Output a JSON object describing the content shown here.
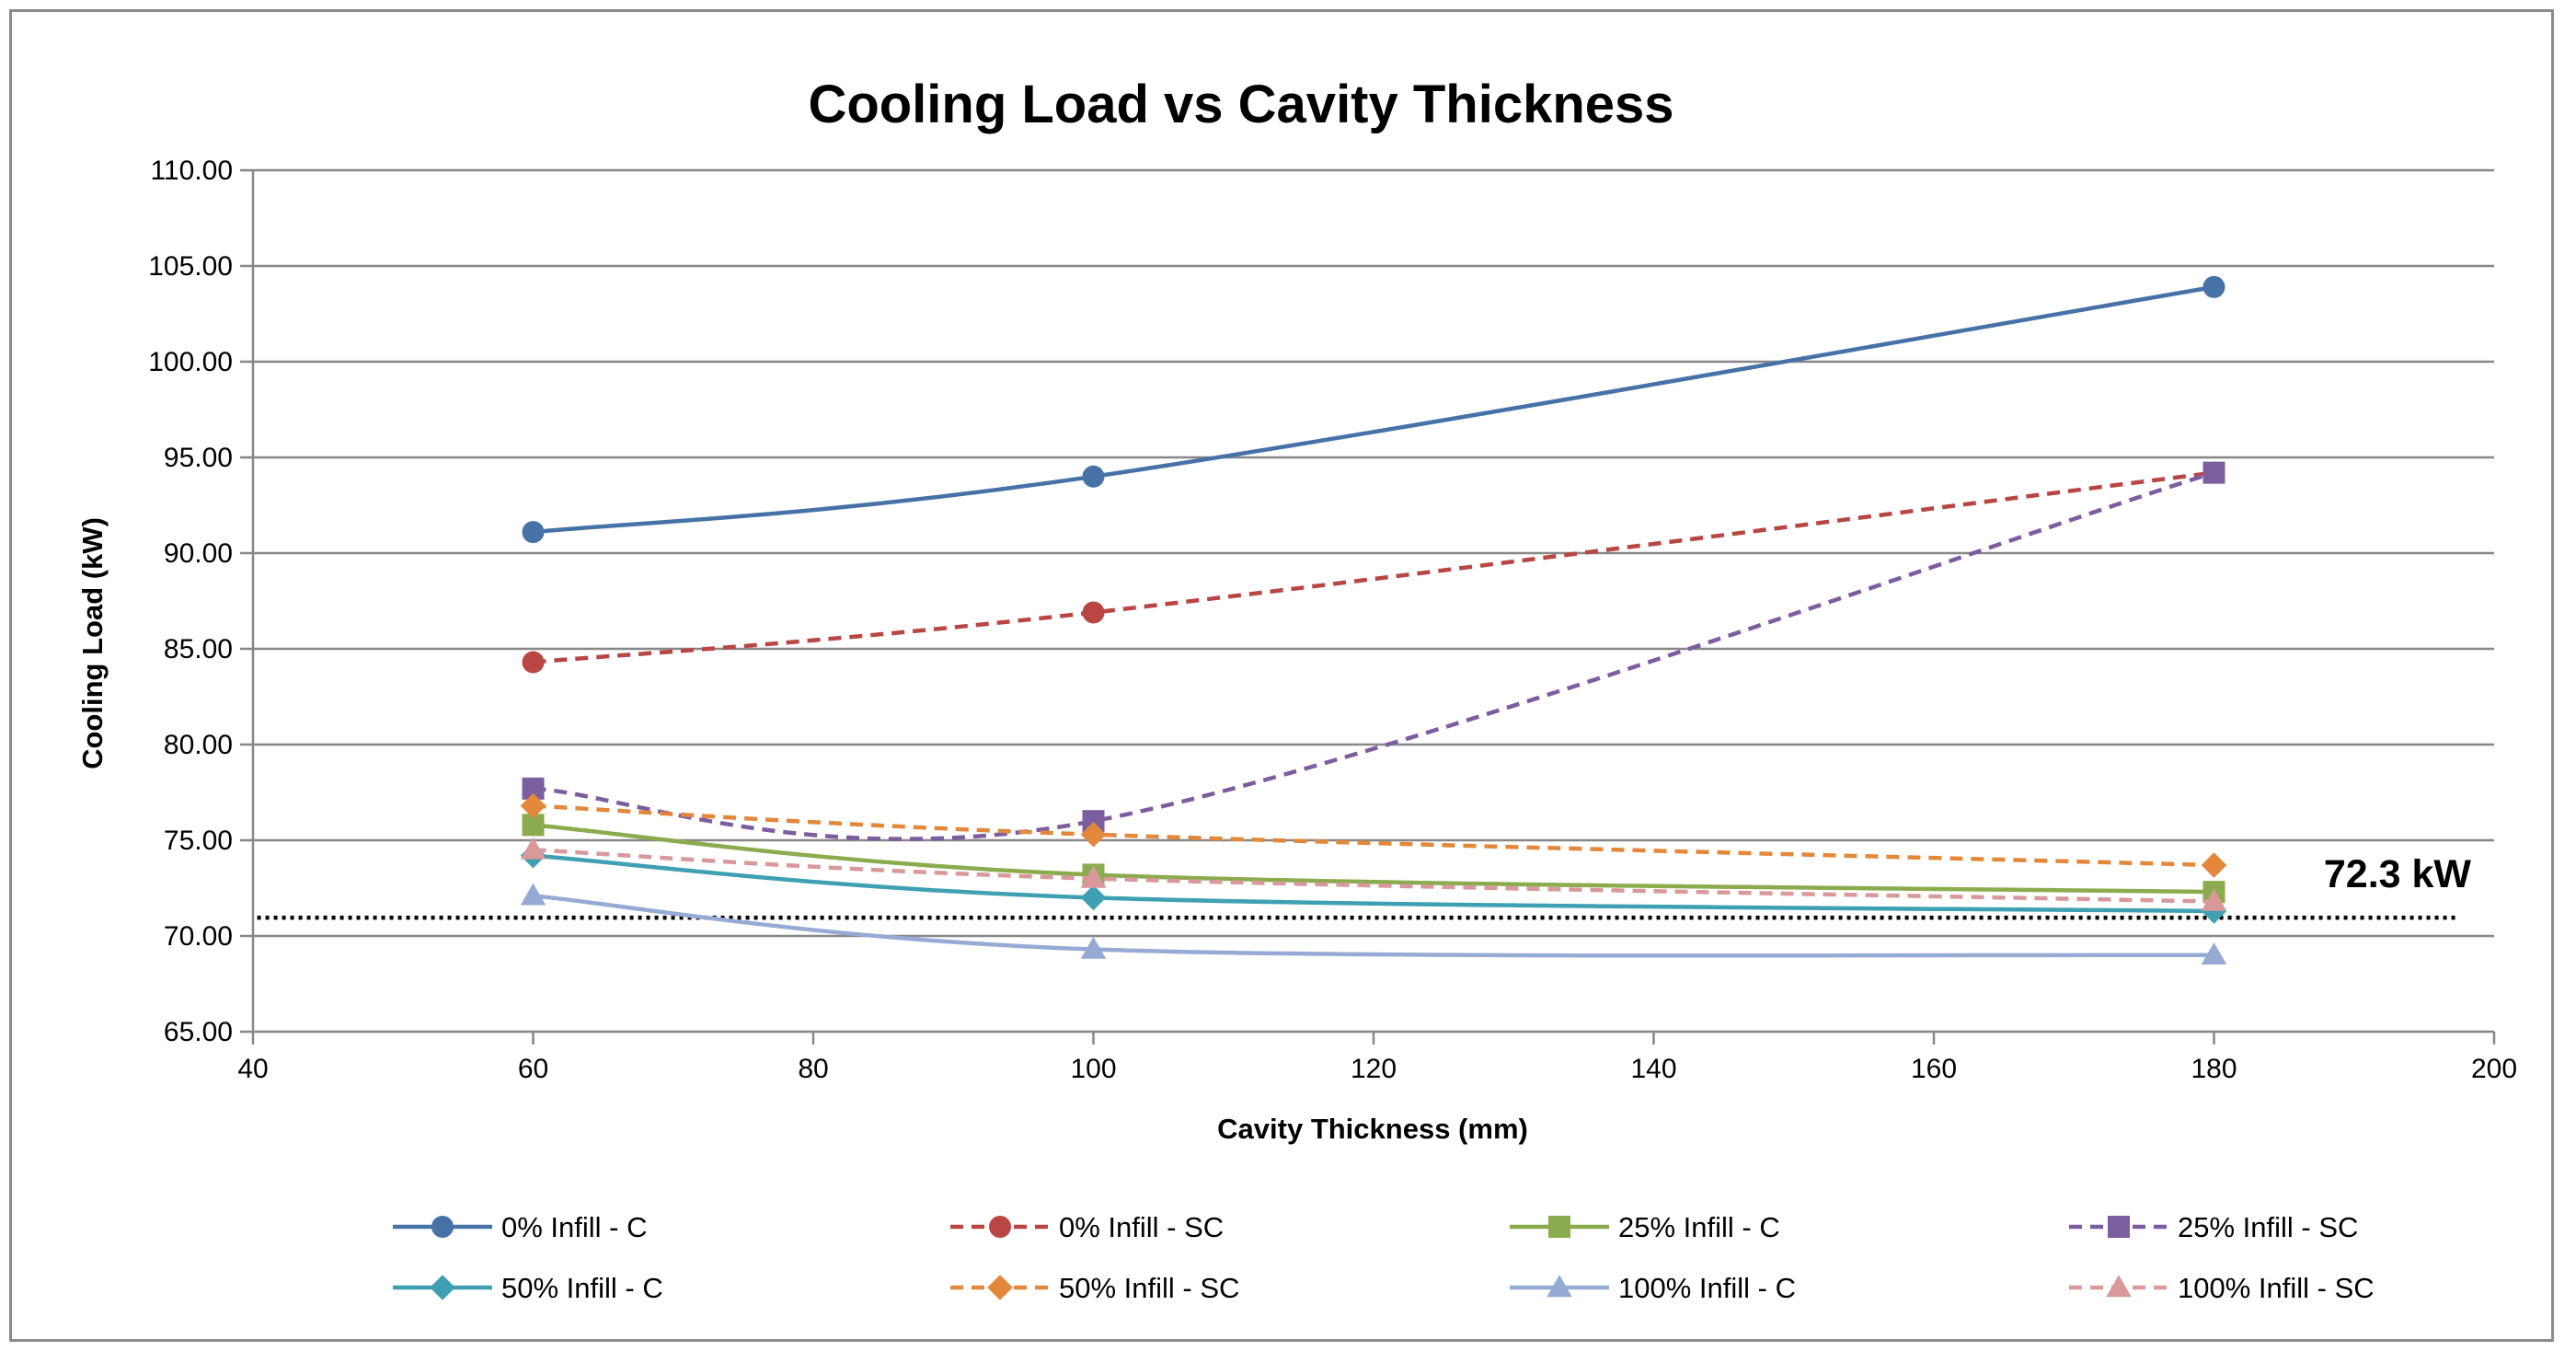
{
  "chart_data": {
    "type": "line",
    "title": "Cooling Load vs Cavity Thickness",
    "xlabel": "Cavity Thickness (mm)",
    "ylabel": "Cooling Load (kW)",
    "xlim": [
      40,
      200
    ],
    "ylim": [
      65,
      110
    ],
    "xticks": [
      40,
      60,
      80,
      100,
      120,
      140,
      160,
      180,
      200
    ],
    "yticks": [
      65,
      70,
      75,
      80,
      85,
      90,
      95,
      100,
      105,
      110
    ],
    "ytick_labels": [
      "65.00",
      "70.00",
      "75.00",
      "80.00",
      "85.00",
      "90.00",
      "95.00",
      "100.00",
      "105.00",
      "110.00"
    ],
    "grid": "horizontal",
    "legend_position": "bottom",
    "x": [
      60,
      100,
      180
    ],
    "series": [
      {
        "name": "0% Infill - C",
        "values": [
          91.1,
          94.0,
          103.9
        ],
        "color": "#4672a8",
        "dash": false,
        "marker": "circle"
      },
      {
        "name": "0% Infill - SC",
        "values": [
          84.3,
          86.9,
          94.2
        ],
        "color": "#b94643",
        "dash": true,
        "marker": "circle"
      },
      {
        "name": "25% Infill - C",
        "values": [
          75.8,
          73.2,
          72.3
        ],
        "color": "#8aab4e",
        "dash": false,
        "marker": "square"
      },
      {
        "name": "25% Infill - SC",
        "values": [
          77.7,
          76.0,
          94.2
        ],
        "color": "#7b5da0",
        "dash": true,
        "marker": "square"
      },
      {
        "name": "50% Infill - C",
        "values": [
          74.2,
          72.0,
          71.3
        ],
        "color": "#3ea0b2",
        "dash": false,
        "marker": "diamond"
      },
      {
        "name": "50% Infill - SC",
        "values": [
          76.8,
          75.3,
          73.7
        ],
        "color": "#e3883a",
        "dash": true,
        "marker": "diamond"
      },
      {
        "name": "100% Infill - C",
        "values": [
          72.1,
          69.3,
          69.0
        ],
        "color": "#95abd6",
        "dash": false,
        "marker": "triangle"
      },
      {
        "name": "100% Infill - SC",
        "values": [
          74.5,
          73.0,
          71.8
        ],
        "color": "#d9999a",
        "dash": true,
        "marker": "triangle"
      }
    ],
    "reference_line": {
      "value": 72.3,
      "label": "72.3 kW",
      "color": "#000000"
    }
  }
}
